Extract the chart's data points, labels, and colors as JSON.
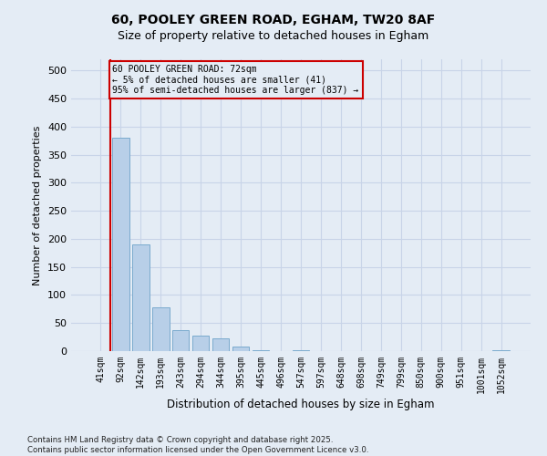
{
  "title1": "60, POOLEY GREEN ROAD, EGHAM, TW20 8AF",
  "title2": "Size of property relative to detached houses in Egham",
  "xlabel": "Distribution of detached houses by size in Egham",
  "ylabel": "Number of detached properties",
  "categories": [
    "41sqm",
    "92sqm",
    "142sqm",
    "193sqm",
    "243sqm",
    "294sqm",
    "344sqm",
    "395sqm",
    "445sqm",
    "496sqm",
    "547sqm",
    "597sqm",
    "648sqm",
    "698sqm",
    "749sqm",
    "799sqm",
    "850sqm",
    "900sqm",
    "951sqm",
    "1001sqm",
    "1052sqm"
  ],
  "values": [
    0,
    380,
    190,
    78,
    38,
    28,
    22,
    8,
    2,
    0,
    2,
    0,
    0,
    0,
    0,
    0,
    0,
    0,
    0,
    0,
    2
  ],
  "bar_color": "#b8cfe8",
  "bar_edge_color": "#7aaace",
  "grid_color": "#c8d4e8",
  "background_color": "#e4ecf5",
  "annotation_text_line1": "60 POOLEY GREEN ROAD: 72sqm",
  "annotation_text_line2": "← 5% of detached houses are smaller (41)",
  "annotation_text_line3": "95% of semi-detached houses are larger (837) →",
  "vline_color": "#cc0000",
  "footer_text": "Contains HM Land Registry data © Crown copyright and database right 2025.\nContains public sector information licensed under the Open Government Licence v3.0.",
  "ylim": [
    0,
    520
  ],
  "yticks": [
    0,
    50,
    100,
    150,
    200,
    250,
    300,
    350,
    400,
    450,
    500
  ]
}
